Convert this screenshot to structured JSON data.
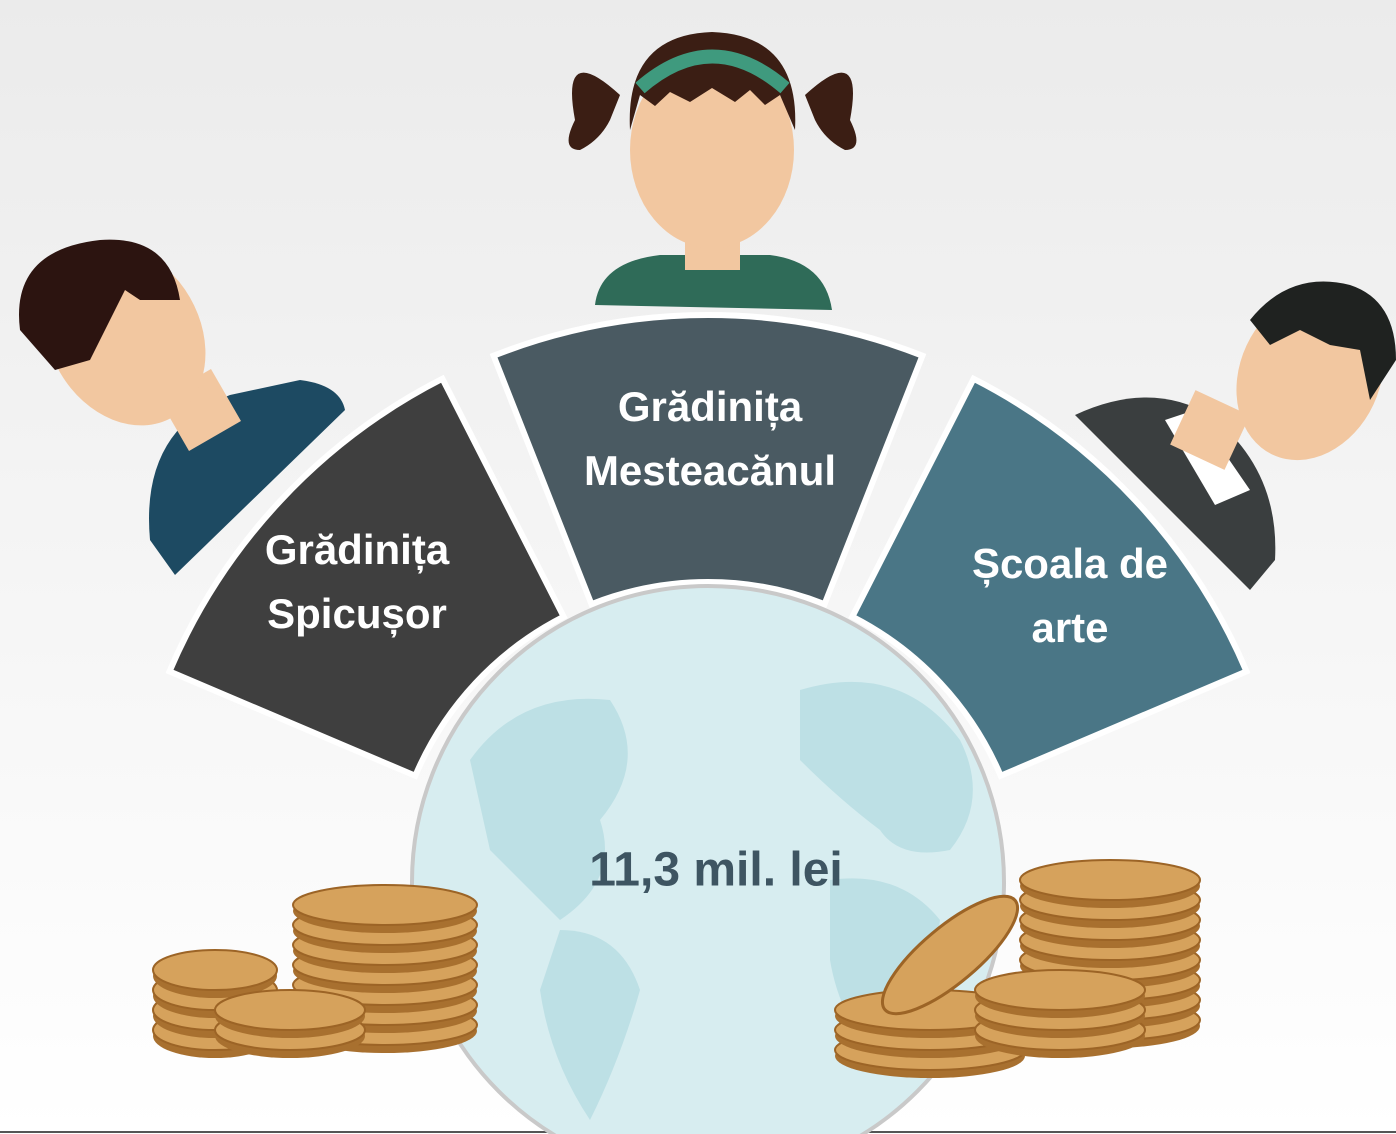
{
  "segments": [
    {
      "lines": [
        "Grădinița",
        "Spicușor"
      ]
    },
    {
      "lines": [
        "Grădinița",
        "Mesteacănul"
      ]
    },
    {
      "lines": [
        "Școala de",
        "arte"
      ]
    }
  ],
  "center": {
    "label": "11,3 mil. lei"
  }
}
